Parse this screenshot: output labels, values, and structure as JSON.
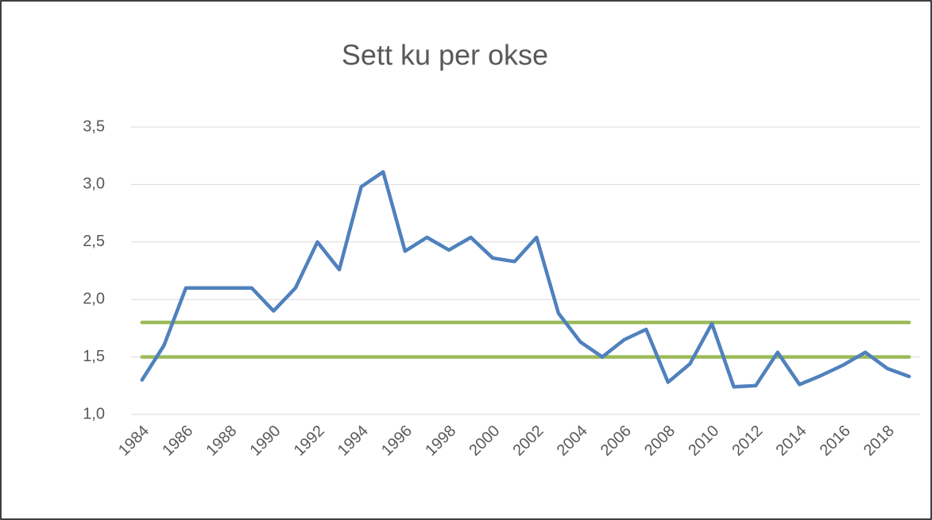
{
  "chart_data": {
    "type": "line",
    "title": "Sett ku per okse",
    "categories": [
      "1984",
      null,
      "1986",
      null,
      "1988",
      null,
      "1990",
      null,
      "1992",
      null,
      "1994",
      null,
      "1996",
      null,
      "1998",
      null,
      "2000",
      null,
      "2002",
      null,
      "2004",
      null,
      "2006",
      null,
      "2008",
      null,
      "2010",
      null,
      "2012",
      null,
      "2014",
      null,
      "2016",
      null,
      "2018",
      null
    ],
    "series": [
      {
        "color": "#4f81bd",
        "values": [
          1.3,
          1.6,
          2.1,
          2.1,
          2.1,
          2.1,
          1.9,
          2.1,
          2.5,
          2.26,
          2.98,
          3.11,
          2.42,
          2.54,
          2.43,
          2.54,
          2.36,
          2.33,
          2.54,
          1.88,
          1.63,
          1.5,
          1.65,
          1.74,
          1.28,
          1.44,
          1.79,
          1.24,
          1.25,
          1.54,
          1.26,
          1.34,
          1.43,
          1.54,
          1.4,
          1.33
        ]
      },
      {
        "color": "#9bbb59",
        "values": [
          1.8,
          1.8,
          1.8,
          1.8,
          1.8,
          1.8,
          1.8,
          1.8,
          1.8,
          1.8,
          1.8,
          1.8,
          1.8,
          1.8,
          1.8,
          1.8,
          1.8,
          1.8,
          1.8,
          1.8,
          1.8,
          1.8,
          1.8,
          1.8,
          1.8,
          1.8,
          1.8,
          1.8,
          1.8,
          1.8,
          1.8,
          1.8,
          1.8,
          1.8,
          1.8,
          1.8
        ]
      },
      {
        "color": "#9bbb59",
        "values": [
          1.5,
          1.5,
          1.5,
          1.5,
          1.5,
          1.5,
          1.5,
          1.5,
          1.5,
          1.5,
          1.5,
          1.5,
          1.5,
          1.5,
          1.5,
          1.5,
          1.5,
          1.5,
          1.5,
          1.5,
          1.5,
          1.5,
          1.5,
          1.5,
          1.5,
          1.5,
          1.5,
          1.5,
          1.5,
          1.5,
          1.5,
          1.5,
          1.5,
          1.5,
          1.5,
          1.5
        ]
      }
    ],
    "ylim": [
      1.0,
      3.5
    ],
    "yticks": [
      {
        "value": 1.0,
        "label": "1,0"
      },
      {
        "value": 1.5,
        "label": "1,5"
      },
      {
        "value": 2.0,
        "label": "2,0"
      },
      {
        "value": 2.5,
        "label": "2,5"
      },
      {
        "value": 3.0,
        "label": "3,0"
      },
      {
        "value": 3.5,
        "label": "3,5"
      }
    ],
    "grid": true
  }
}
